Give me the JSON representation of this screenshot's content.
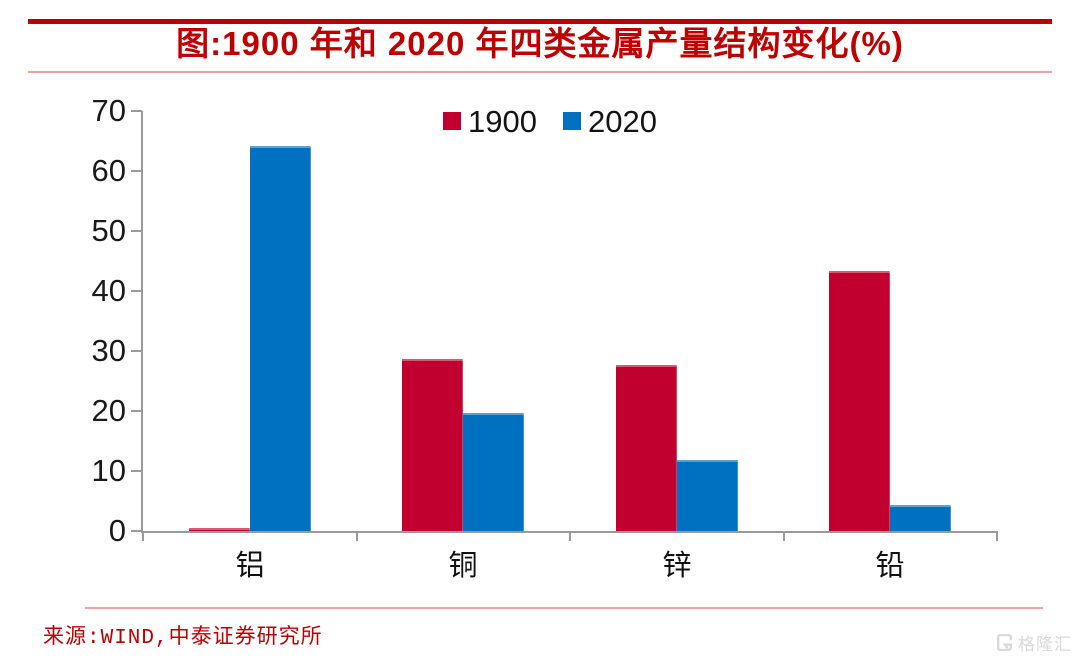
{
  "page": {
    "title": "图:1900 年和 2020 年四类金属产量结构变化(%)",
    "source": "来源:WIND,中泰证券研究所",
    "watermark": "格隆汇"
  },
  "colors": {
    "title_red": "#c00000",
    "divider_pink": "#e9a2a2",
    "axis_gray": "#9a9a9a",
    "series_1900_red": "#c2002f",
    "series_2020_blue": "#0070c0",
    "watermark_gray": "#d9d9d9"
  },
  "chart_data": {
    "type": "bar",
    "title": "1900 年和 2020 年四类金属产量结构变化(%)",
    "categories": [
      "铝",
      "铜",
      "锌",
      "铅"
    ],
    "series": [
      {
        "name": "1900",
        "color": "#c2002f",
        "values": [
          0.5,
          28.6,
          27.7,
          43.3
        ]
      },
      {
        "name": "2020",
        "color": "#0070c0",
        "values": [
          64.1,
          19.6,
          11.8,
          4.3
        ]
      }
    ],
    "xlabel": "",
    "ylabel": "",
    "ylim": [
      0,
      70
    ],
    "ytick_step": 10,
    "grid": false,
    "legend_position": "top-center"
  }
}
